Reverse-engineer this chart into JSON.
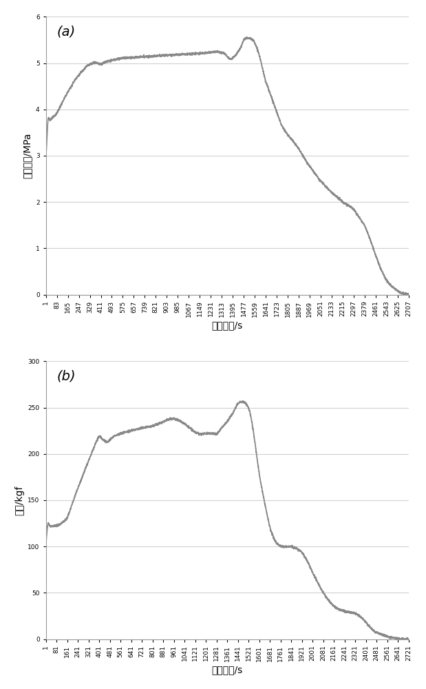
{
  "chart_a": {
    "label": "(a)",
    "ylabel": "滙止压强/MPa",
    "xlabel": "时间步长/s",
    "ylim": [
      0,
      6
    ],
    "yticks": [
      0,
      1,
      2,
      3,
      4,
      5,
      6
    ],
    "xticks": [
      1,
      83,
      165,
      247,
      329,
      411,
      493,
      575,
      657,
      739,
      821,
      903,
      985,
      1067,
      1149,
      1231,
      1313,
      1395,
      1477,
      1559,
      1641,
      1723,
      1805,
      1887,
      1969,
      2051,
      2133,
      2215,
      2297,
      2379,
      2461,
      2543,
      2625,
      2707
    ],
    "line_color": "#888888",
    "line_width": 1.3
  },
  "chart_b": {
    "label": "(b)",
    "ylabel": "推力/kgf",
    "xlabel": "时间步长/s",
    "ylim": [
      0,
      300
    ],
    "yticks": [
      0,
      50,
      100,
      150,
      200,
      250,
      300
    ],
    "xticks": [
      1,
      81,
      161,
      241,
      321,
      401,
      481,
      561,
      641,
      721,
      801,
      881,
      961,
      1041,
      1121,
      1201,
      1281,
      1361,
      1441,
      1521,
      1601,
      1681,
      1761,
      1841,
      1921,
      2001,
      2081,
      2161,
      2241,
      2321,
      2401,
      2481,
      2561,
      2641,
      2721
    ],
    "line_color": "#888888",
    "line_width": 1.3
  },
  "background_color": "#ffffff",
  "grid_color": "#d0d0d0",
  "label_fontsize": 10,
  "tick_fontsize": 6.5
}
